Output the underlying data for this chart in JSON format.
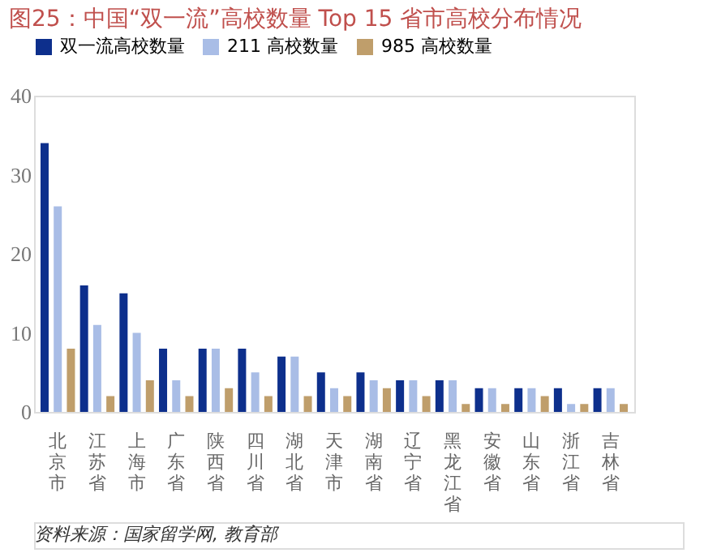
{
  "chart_data": {
    "type": "bar",
    "title": "图25：中国“双一流”高校数量 Top 15 省市高校分布情况",
    "categories": [
      "北京市",
      "江苏省",
      "上海市",
      "广东省",
      "陕西省",
      "四川省",
      "湖北省",
      "天津市",
      "湖南省",
      "辽宁省",
      "黑龙江省",
      "安徽省",
      "山东省",
      "浙江省",
      "吉林省"
    ],
    "series": [
      {
        "name": "双一流高校数量",
        "color": "#0d2f8c",
        "values": [
          34,
          16,
          15,
          8,
          8,
          8,
          7,
          5,
          5,
          4,
          4,
          3,
          3,
          3,
          3
        ]
      },
      {
        "name": "211 高校数量",
        "color": "#a9bde6",
        "values": [
          26,
          11,
          10,
          4,
          8,
          5,
          7,
          3,
          4,
          4,
          4,
          3,
          3,
          1,
          3
        ]
      },
      {
        "name": "985 高校数量",
        "color": "#bf9e6b",
        "values": [
          8,
          2,
          4,
          2,
          3,
          2,
          2,
          2,
          3,
          2,
          1,
          1,
          2,
          1,
          1
        ]
      }
    ],
    "ylim": [
      0,
      40
    ],
    "yticks": [
      0,
      10,
      20,
      30,
      40
    ],
    "grid": false,
    "legend": "top",
    "annotations": [
      "资料来源：国家留学网, 教育部"
    ]
  }
}
